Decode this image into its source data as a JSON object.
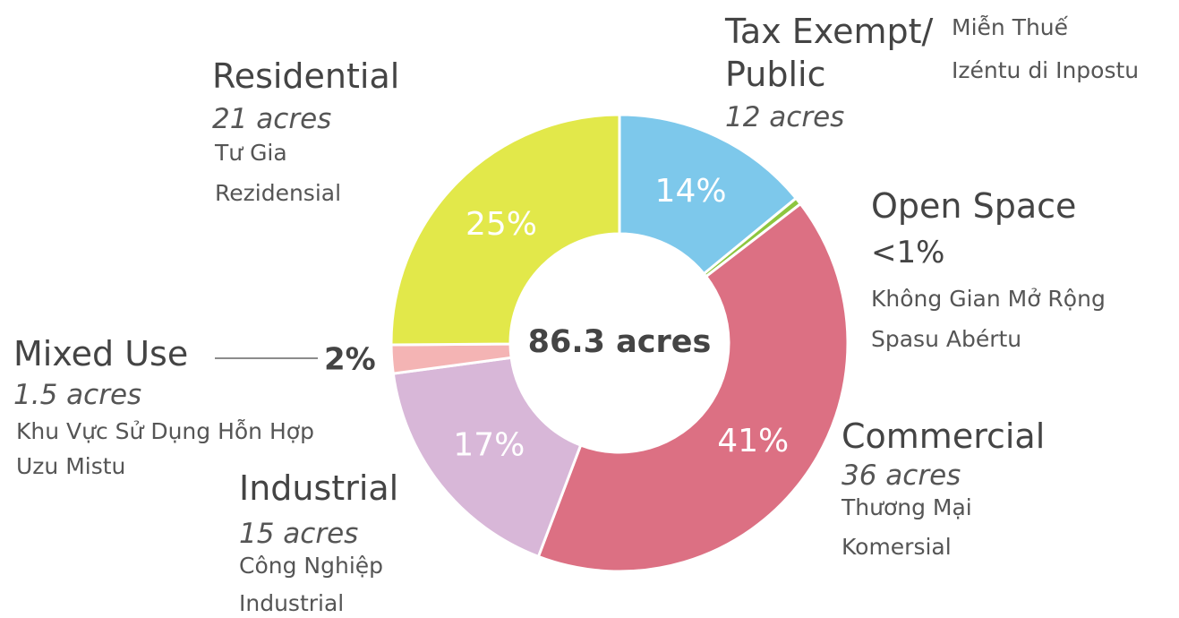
{
  "chart_data": {
    "type": "pie",
    "donut": true,
    "center_label": "86.3 acres",
    "categories": [
      "Tax Exempt/ Public",
      "Open Space",
      "Commercial",
      "Industrial",
      "Mixed Use",
      "Residential"
    ],
    "values": [
      14,
      0.5,
      41,
      17,
      2,
      25
    ],
    "value_labels": [
      "14%",
      "<1%",
      "41%",
      "17%",
      "2%",
      "25%"
    ],
    "colors": [
      "#7dc8eb",
      "#8dc63f",
      "#dc7083",
      "#d8b7d8",
      "#f4b4b4",
      "#e2e84a"
    ],
    "area_labels": [
      "12 acres",
      null,
      "36 acres",
      "15 acres",
      "1.5 acres",
      "21 acres"
    ],
    "translations": [
      [
        "Miễn Thuế",
        "Izéntu di Inpostu"
      ],
      [
        "Không Gian Mở Rộng",
        "Spasu Abértu"
      ],
      [
        "Thương Mại",
        "Komersial"
      ],
      [
        "Công Nghiệp",
        "Industrial"
      ],
      [
        "Khu Vực Sử Dụng Hỗn Hợp",
        "Uzu Mistu"
      ],
      [
        "Tư Gia",
        "Rezidensial"
      ]
    ]
  }
}
